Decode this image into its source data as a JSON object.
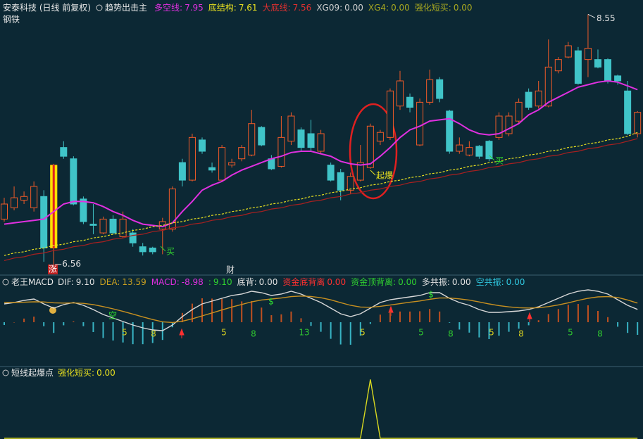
{
  "header": {
    "title": "安泰科技 (日线 前复权)",
    "indicator": "趋势出击主",
    "items": [
      {
        "label": "多空线:",
        "value": "7.95",
        "color": "#e030e0"
      },
      {
        "label": "底结构:",
        "value": "7.61",
        "color": "#e8e020"
      },
      {
        "label": "大底线:",
        "value": "7.56",
        "color": "#e03030"
      },
      {
        "label": "XG09:",
        "value": "0.00",
        "color": "#d0d0d0"
      },
      {
        "label": "XG4:",
        "value": "0.00",
        "color": "#a8a820"
      },
      {
        "label": "强化短买:",
        "value": "0.00",
        "color": "#a8a820"
      }
    ],
    "sector": "钢铁"
  },
  "chart_data": [
    {
      "type": "candlestick",
      "open": [
        6.92,
        7.01,
        7.07,
        7.01,
        7.1,
        6.69,
        7.49,
        7.4,
        7.08,
        6.88,
        6.81,
        6.92,
        6.78,
        6.81,
        6.7,
        6.69,
        6.84,
        6.84,
        7.37,
        7.23,
        7.55,
        7.33,
        7.23,
        7.35,
        7.4,
        7.43,
        7.65,
        7.4,
        7.34,
        7.54,
        7.63,
        7.6,
        7.46,
        7.35,
        7.29,
        7.15,
        7.23,
        7.33,
        7.54,
        7.57,
        7.82,
        7.89,
        7.51,
        7.85,
        8.03,
        7.78,
        7.46,
        7.43,
        7.5,
        7.54,
        7.57,
        7.6,
        7.7,
        7.93,
        7.82,
        7.82,
        8.1,
        8.21,
        8.26,
        8.19,
        8.19,
        8.19,
        8.06,
        7.94,
        7.6
      ],
      "close": [
        7.04,
        7.09,
        7.1,
        7.18,
        6.69,
        7.35,
        7.42,
        7.04,
        6.9,
        6.87,
        6.92,
        6.81,
        6.92,
        6.73,
        6.66,
        6.66,
        6.9,
        7.16,
        7.23,
        7.57,
        7.46,
        7.31,
        7.49,
        7.37,
        7.49,
        7.68,
        7.51,
        7.32,
        7.57,
        7.74,
        7.49,
        7.49,
        7.6,
        7.23,
        7.15,
        7.26,
        7.37,
        7.66,
        7.61,
        7.94,
        8.02,
        7.81,
        7.85,
        8.03,
        7.88,
        7.46,
        7.51,
        7.49,
        7.42,
        7.4,
        7.74,
        7.74,
        7.85,
        7.81,
        7.94,
        8.13,
        8.19,
        8.3,
        8.0,
        8.28,
        8.13,
        8.02,
        8.02,
        7.6,
        7.77
      ],
      "high": [
        7.09,
        7.18,
        7.14,
        7.22,
        7.15,
        7.36,
        7.54,
        7.42,
        7.1,
        7.04,
        6.94,
        6.95,
        6.98,
        6.84,
        6.73,
        6.7,
        6.93,
        7.18,
        7.4,
        7.6,
        7.57,
        7.37,
        7.51,
        7.4,
        7.51,
        7.79,
        7.66,
        7.43,
        7.74,
        7.77,
        7.65,
        7.71,
        7.63,
        7.37,
        7.32,
        7.29,
        7.51,
        7.68,
        7.63,
        7.96,
        8.1,
        7.92,
        7.88,
        8.11,
        8.05,
        7.79,
        7.57,
        7.54,
        7.51,
        7.55,
        7.77,
        7.77,
        7.88,
        7.96,
        8.02,
        8.35,
        8.21,
        8.33,
        8.29,
        8.55,
        8.27,
        8.2,
        8.07,
        8.02,
        7.78
      ],
      "low": [
        6.9,
        6.99,
        7.04,
        6.98,
        6.58,
        6.56,
        7.4,
        7.03,
        6.88,
        6.8,
        6.8,
        6.8,
        6.77,
        6.7,
        6.63,
        6.64,
        6.64,
        6.82,
        7.18,
        7.22,
        7.44,
        7.29,
        7.22,
        7.33,
        7.38,
        7.42,
        7.5,
        7.31,
        7.33,
        7.51,
        7.46,
        7.46,
        7.44,
        7.22,
        7.07,
        7.12,
        7.22,
        7.32,
        7.51,
        7.55,
        7.79,
        7.77,
        7.5,
        7.83,
        7.85,
        7.44,
        7.44,
        7.42,
        7.4,
        7.38,
        7.55,
        7.58,
        7.68,
        7.79,
        7.8,
        7.81,
        8.08,
        8.2,
        7.99,
        8.05,
        8.12,
        8.0,
        7.99,
        7.59,
        7.57
      ],
      "up_color": "#f05a28",
      "down_color": "#40c4c8",
      "ylim": [
        6.48,
        8.58
      ],
      "series": [
        {
          "color": "#e030e0",
          "values": [
            6.88,
            6.89,
            6.9,
            6.91,
            6.92,
            6.98,
            7.04,
            7.06,
            7.06,
            7.05,
            7.02,
            6.98,
            6.95,
            6.91,
            6.88,
            6.87,
            6.86,
            6.89,
            6.98,
            7.06,
            7.15,
            7.19,
            7.22,
            7.27,
            7.31,
            7.34,
            7.37,
            7.4,
            7.42,
            7.45,
            7.46,
            7.46,
            7.44,
            7.42,
            7.38,
            7.36,
            7.35,
            7.36,
            7.42,
            7.49,
            7.57,
            7.63,
            7.66,
            7.7,
            7.71,
            7.72,
            7.68,
            7.63,
            7.6,
            7.59,
            7.6,
            7.64,
            7.68,
            7.75,
            7.79,
            7.85,
            7.89,
            7.93,
            7.97,
            7.99,
            8.01,
            8.02,
            8.01,
            7.98,
            7.95
          ]
        },
        {
          "color": "#e8e020",
          "dash": true,
          "values": [
            6.63,
            6.65,
            6.66,
            6.68,
            6.69,
            6.71,
            6.72,
            6.74,
            6.75,
            6.77,
            6.78,
            6.8,
            6.81,
            6.83,
            6.84,
            6.86,
            6.87,
            6.89,
            6.9,
            6.92,
            6.93,
            6.95,
            6.96,
            6.98,
            6.99,
            7.01,
            7.02,
            7.04,
            7.05,
            7.07,
            7.08,
            7.1,
            7.11,
            7.13,
            7.14,
            7.16,
            7.17,
            7.19,
            7.2,
            7.22,
            7.23,
            7.25,
            7.26,
            7.28,
            7.29,
            7.31,
            7.32,
            7.34,
            7.35,
            7.37,
            7.38,
            7.4,
            7.41,
            7.43,
            7.44,
            7.46,
            7.47,
            7.49,
            7.5,
            7.52,
            7.53,
            7.55,
            7.56,
            7.58,
            7.61
          ]
        },
        {
          "color": "#a82020",
          "values": [
            6.59,
            6.61,
            6.62,
            6.64,
            6.65,
            6.67,
            6.68,
            6.7,
            6.71,
            6.73,
            6.74,
            6.76,
            6.77,
            6.79,
            6.8,
            6.82,
            6.83,
            6.85,
            6.86,
            6.88,
            6.89,
            6.91,
            6.92,
            6.94,
            6.95,
            6.97,
            6.98,
            7.0,
            7.01,
            7.03,
            7.04,
            7.06,
            7.07,
            7.09,
            7.1,
            7.12,
            7.13,
            7.15,
            7.16,
            7.18,
            7.19,
            7.21,
            7.22,
            7.24,
            7.25,
            7.27,
            7.28,
            7.3,
            7.31,
            7.33,
            7.34,
            7.36,
            7.37,
            7.39,
            7.4,
            7.42,
            7.43,
            7.45,
            7.46,
            7.48,
            7.49,
            7.51,
            7.52,
            7.54,
            7.56
          ]
        }
      ],
      "max_label": 8.55,
      "min_label": 6.56,
      "annotations": [
        {
          "text": "起爆",
          "color": "#e8e020"
        },
        {
          "text": "买",
          "color": "#30d030"
        },
        {
          "text": "买",
          "color": "#30d030"
        }
      ],
      "axis_labels": [
        {
          "text": "涨",
          "color": "#ffffff"
        },
        {
          "text": "财",
          "color": "#e0e0e0"
        }
      ]
    },
    {
      "type": "macd",
      "title": "老王MACD",
      "legend": [
        {
          "label": "DIF:",
          "value": "9.10",
          "color": "#e0e0e0"
        },
        {
          "label": "DEA:",
          "value": "13.59",
          "color": "#c8a020"
        },
        {
          "label": "MACD:",
          "value": "-8.98",
          "color": "#e030e0"
        },
        {
          "label": ":",
          "value": "9.10",
          "color": "#30d030"
        },
        {
          "label": "底背:",
          "value": "0.00",
          "color": "#e0e0e0"
        },
        {
          "label": "资金底背离",
          "value": "0.00",
          "color": "#ff3030"
        },
        {
          "label": "资金顶背离:",
          "value": "0.00",
          "color": "#30d030"
        },
        {
          "label": "多共振:",
          "value": "0.00",
          "color": "#e0e0e0"
        },
        {
          "label": "空共振:",
          "value": "0.00",
          "color": "#30c8e0"
        }
      ],
      "ylim": [
        -31,
        29
      ],
      "series": [
        {
          "color": "#d8d8d8",
          "values": [
            13,
            14,
            15.5,
            16.5,
            13,
            10,
            12.5,
            14,
            12,
            9,
            5.5,
            3,
            0.5,
            -2,
            -4,
            -5.5,
            -6,
            -2,
            4,
            9,
            13,
            15,
            17,
            19,
            20,
            22,
            21,
            19,
            20,
            22,
            20,
            17,
            14,
            10,
            6,
            4,
            6,
            10,
            14,
            16,
            17,
            18,
            19,
            21,
            21,
            17,
            14,
            12,
            9,
            7,
            7,
            7.5,
            8,
            9,
            11,
            14,
            17,
            20,
            22,
            23,
            22,
            20,
            16,
            12,
            9.1
          ]
        },
        {
          "color": "#c89020",
          "values": [
            14,
            14,
            14.2,
            14.5,
            14.4,
            13.8,
            13.6,
            13.7,
            13.4,
            12.5,
            11.1,
            9.5,
            7.7,
            5.8,
            3.8,
            1.9,
            0.3,
            -0.2,
            0.7,
            2.4,
            4.5,
            6.6,
            8.7,
            10.8,
            12.6,
            14.5,
            15.8,
            16.5,
            17.2,
            18.2,
            18.6,
            18.3,
            17.4,
            15.9,
            13.9,
            12,
            10.8,
            10.6,
            11.3,
            12.2,
            13.2,
            14.2,
            15.1,
            16.3,
            17.2,
            17.2,
            16.6,
            15.7,
            14.4,
            13,
            11.8,
            10.9,
            10.3,
            10.1,
            10.3,
            11.1,
            12.3,
            13.8,
            15.5,
            17,
            18,
            18.2,
            17.6,
            15.8,
            13.59
          ]
        }
      ],
      "bars": [
        -2,
        0,
        2.6,
        4,
        -2.8,
        -7.6,
        -2.2,
        0.6,
        -2.8,
        -7,
        -11.2,
        -13,
        -14.4,
        -15.6,
        -15.6,
        -14.8,
        -12.6,
        -3.6,
        6.6,
        13.2,
        17,
        16.8,
        16.6,
        16.4,
        14.8,
        15,
        10.4,
        5,
        5.6,
        7.6,
        2.8,
        -2.6,
        -6.8,
        -11.8,
        -15.8,
        -16,
        -9.6,
        -1.2,
        5.4,
        7.6,
        7.6,
        7.6,
        7.8,
        9.4,
        7.6,
        -0.4,
        -5.2,
        -7.4,
        -10.8,
        -12,
        -9.6,
        -6.8,
        -4.6,
        -2.2,
        1.4,
        5.8,
        9.4,
        12.4,
        13,
        12,
        8,
        3.6,
        -3.2,
        -7.6,
        -8.98
      ],
      "pos_color": "#c05020",
      "neg_color": "#38b4c4",
      "annotations": [
        {
          "text": "5",
          "color": "#d8d020"
        },
        {
          "text": "8",
          "color": "#d8d020"
        },
        {
          "text": "5",
          "color": "#d8d020"
        },
        {
          "text": "8",
          "color": "#30c830"
        },
        {
          "text": "13",
          "color": "#30c830"
        },
        {
          "text": "5",
          "color": "#d8d020"
        },
        {
          "text": "5",
          "color": "#30c830"
        },
        {
          "text": "8",
          "color": "#30c830"
        },
        {
          "text": "5",
          "color": "#d8d020"
        },
        {
          "text": "8",
          "color": "#d8d020"
        },
        {
          "text": "5",
          "color": "#30c830"
        },
        {
          "text": "8",
          "color": "#30c830"
        },
        {
          "text": "$",
          "color": "#30e030"
        },
        {
          "text": "$",
          "color": "#30e030"
        },
        {
          "text": "空",
          "color": "#30e030"
        }
      ]
    },
    {
      "type": "line",
      "title": "短线起爆点",
      "legend": [
        {
          "label": "强化短买:",
          "value": "0.00",
          "color": "#e8e020"
        }
      ],
      "ylim": [
        0,
        1.1
      ],
      "color": "#d8d820",
      "values": [
        0,
        0,
        0,
        0,
        0,
        0,
        0,
        0,
        0,
        0,
        0,
        0,
        0,
        0,
        0,
        0,
        0,
        0,
        0,
        0,
        0,
        0,
        0,
        0,
        0,
        0,
        0,
        0,
        0,
        0,
        0,
        0,
        0,
        0,
        0,
        0,
        0,
        1,
        0,
        0,
        0,
        0,
        0,
        0,
        0,
        0,
        0,
        0,
        0,
        0,
        0,
        0,
        0,
        0,
        0,
        0,
        0,
        0,
        0,
        0,
        0,
        0,
        0,
        0,
        0
      ]
    }
  ]
}
